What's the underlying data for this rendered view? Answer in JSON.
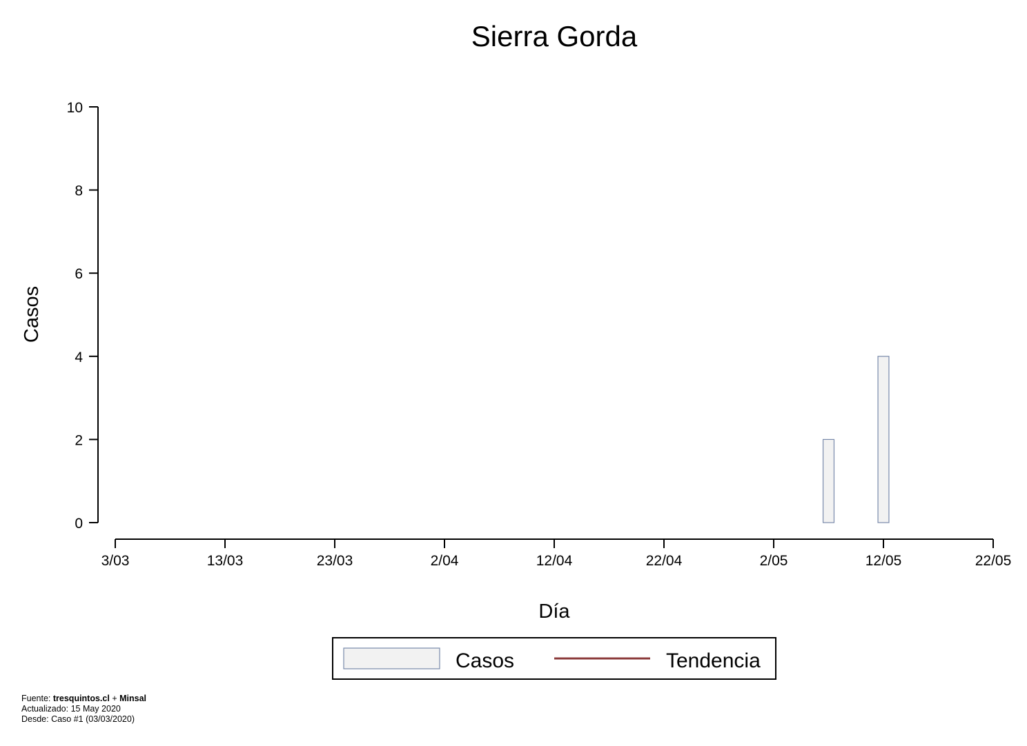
{
  "chart_data": {
    "type": "bar",
    "title": "Sierra Gorda",
    "xlabel": "Día",
    "ylabel": "Casos",
    "x_ticks": [
      "3/03",
      "13/03",
      "23/03",
      "2/04",
      "12/04",
      "22/04",
      "2/05",
      "12/05",
      "22/05"
    ],
    "x_tick_days": [
      0,
      10,
      20,
      30,
      40,
      50,
      60,
      70,
      80
    ],
    "xlim_days": [
      0,
      80
    ],
    "y_ticks": [
      0,
      2,
      4,
      6,
      8,
      10
    ],
    "ylim": [
      0,
      10
    ],
    "grid": false,
    "legend_position": "bottom-center",
    "series": [
      {
        "name": "Casos",
        "kind": "bar",
        "fill": "#f2f2f2",
        "stroke": "#7788aa",
        "points": [
          {
            "day": "7/05",
            "value": 2
          },
          {
            "day": "12/05",
            "value": 4
          }
        ]
      },
      {
        "name": "Tendencia",
        "kind": "line",
        "color": "#8b3a3a",
        "points": []
      }
    ]
  },
  "footer": {
    "source_prefix": "Fuente: ",
    "source_a": "tresquintos.cl",
    "source_join": " + ",
    "source_b": "Minsal",
    "updated": "Actualizado: 15 May 2020",
    "since": "Desde: Caso #1  (03/03/2020)"
  }
}
